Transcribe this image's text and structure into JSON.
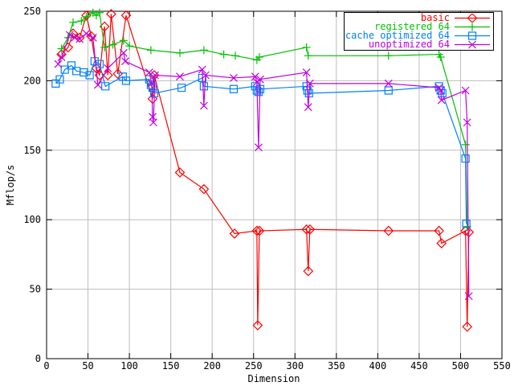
{
  "window": {
    "background": "#ffffff"
  },
  "chart_data": {
    "type": "line",
    "title": "",
    "xlabel": "Dimension",
    "ylabel": "Mflop/s",
    "xlim": [
      0,
      550
    ],
    "ylim": [
      0,
      250
    ],
    "xticks": [
      0,
      50,
      100,
      150,
      200,
      250,
      300,
      350,
      400,
      450,
      500,
      550
    ],
    "yticks": [
      0,
      50,
      100,
      150,
      200,
      250
    ],
    "grid": true,
    "grid_color": "#bdbdbd",
    "axis_color": "#000000",
    "legend_position": "top-right",
    "series": [
      {
        "name": "basic",
        "color": "#ff0000",
        "marker": "diamond",
        "points": [
          [
            18,
            219
          ],
          [
            26,
            224
          ],
          [
            32,
            234
          ],
          [
            40,
            231
          ],
          [
            48,
            247
          ],
          [
            54,
            232
          ],
          [
            60,
            209
          ],
          [
            64,
            204
          ],
          [
            70,
            239
          ],
          [
            74,
            204
          ],
          [
            78,
            248
          ],
          [
            86,
            205
          ],
          [
            96,
            247
          ],
          [
            128,
            187
          ],
          [
            130,
            204
          ],
          [
            161,
            134
          ],
          [
            190,
            122
          ],
          [
            227,
            90
          ],
          [
            254,
            92
          ],
          [
            255,
            24
          ],
          [
            257,
            92
          ],
          [
            314,
            93
          ],
          [
            316,
            63
          ],
          [
            318,
            93
          ],
          [
            413,
            92
          ],
          [
            474,
            92
          ],
          [
            477,
            83
          ],
          [
            506,
            92
          ],
          [
            508,
            23
          ],
          [
            510,
            91
          ]
        ]
      },
      {
        "name": "registered 64",
        "color": "#00c000",
        "marker": "plus",
        "points": [
          [
            18,
            223
          ],
          [
            26,
            231
          ],
          [
            32,
            242
          ],
          [
            42,
            243
          ],
          [
            48,
            246
          ],
          [
            56,
            249
          ],
          [
            60,
            247
          ],
          [
            64,
            249
          ],
          [
            70,
            224
          ],
          [
            80,
            226
          ],
          [
            93,
            229
          ],
          [
            100,
            225
          ],
          [
            126,
            222
          ],
          [
            161,
            220
          ],
          [
            190,
            222
          ],
          [
            214,
            219
          ],
          [
            228,
            218
          ],
          [
            254,
            215
          ],
          [
            257,
            217
          ],
          [
            314,
            224
          ],
          [
            316,
            218
          ],
          [
            413,
            218
          ],
          [
            474,
            219
          ],
          [
            476,
            217
          ],
          [
            506,
            154
          ],
          [
            508,
            95
          ]
        ]
      },
      {
        "name": "cache optimized 64",
        "color": "#0080ff",
        "marker": "square",
        "points": [
          [
            11,
            198
          ],
          [
            16,
            201
          ],
          [
            22,
            208
          ],
          [
            30,
            211
          ],
          [
            36,
            207
          ],
          [
            45,
            206
          ],
          [
            52,
            204
          ],
          [
            58,
            214
          ],
          [
            64,
            212
          ],
          [
            71,
            196
          ],
          [
            92,
            203
          ],
          [
            96,
            200
          ],
          [
            124,
            201
          ],
          [
            126,
            197
          ],
          [
            128,
            195
          ],
          [
            130,
            191
          ],
          [
            163,
            195
          ],
          [
            188,
            202
          ],
          [
            190,
            196
          ],
          [
            226,
            194
          ],
          [
            252,
            196
          ],
          [
            254,
            193
          ],
          [
            256,
            192
          ],
          [
            258,
            194
          ],
          [
            314,
            196
          ],
          [
            315,
            193
          ],
          [
            317,
            191
          ],
          [
            413,
            193
          ],
          [
            474,
            196
          ],
          [
            476,
            193
          ],
          [
            478,
            191
          ],
          [
            506,
            144
          ],
          [
            507,
            97
          ]
        ]
      },
      {
        "name": "unoptimized 64",
        "color": "#c000e0",
        "marker": "x",
        "points": [
          [
            14,
            212
          ],
          [
            18,
            217
          ],
          [
            28,
            233
          ],
          [
            34,
            231
          ],
          [
            40,
            230
          ],
          [
            48,
            234
          ],
          [
            56,
            231
          ],
          [
            62,
            197
          ],
          [
            74,
            209
          ],
          [
            93,
            220
          ],
          [
            95,
            214
          ],
          [
            124,
            206
          ],
          [
            127,
            198
          ],
          [
            128,
            174
          ],
          [
            129,
            170
          ],
          [
            131,
            204
          ],
          [
            161,
            203
          ],
          [
            188,
            208
          ],
          [
            190,
            182
          ],
          [
            192,
            204
          ],
          [
            226,
            202
          ],
          [
            252,
            203
          ],
          [
            254,
            199
          ],
          [
            256,
            152
          ],
          [
            258,
            201
          ],
          [
            314,
            206
          ],
          [
            316,
            181
          ],
          [
            318,
            198
          ],
          [
            413,
            198
          ],
          [
            474,
            195
          ],
          [
            476,
            193
          ],
          [
            477,
            186
          ],
          [
            506,
            193
          ],
          [
            508,
            170
          ],
          [
            510,
            45
          ]
        ]
      }
    ]
  }
}
